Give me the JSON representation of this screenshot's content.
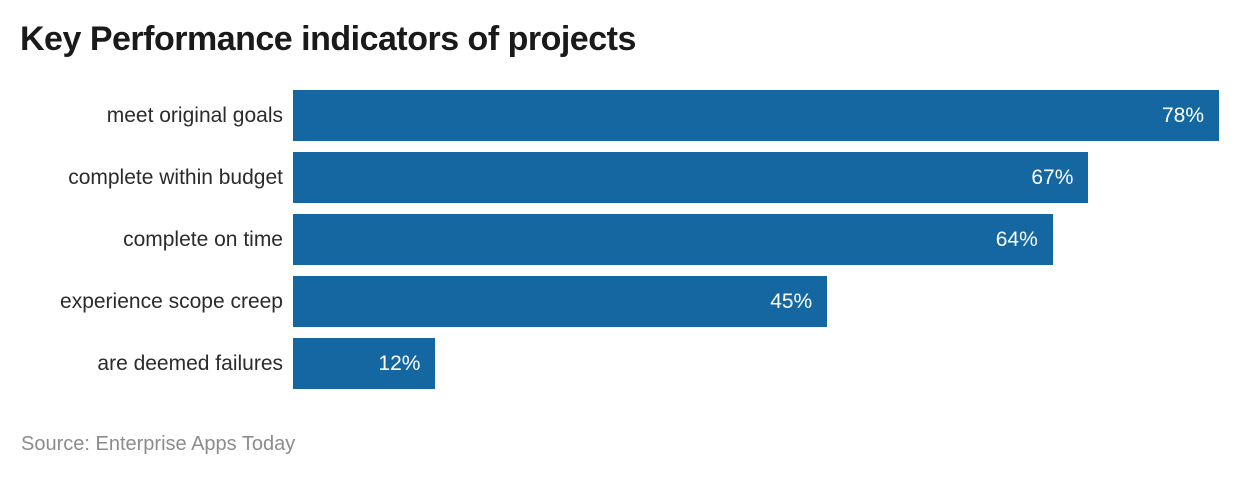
{
  "title": "Key Performance indicators of projects",
  "source": "Source: Enterprise Apps Today",
  "colors": {
    "bar": "#1467a0",
    "value_text": "#ffffff",
    "title_text": "#1a1a1a",
    "label_text": "#2b2b2b",
    "source_text": "#8c8c8c",
    "background": "#ffffff"
  },
  "chart_data": {
    "type": "bar",
    "orientation": "horizontal",
    "title": "Key Performance indicators of projects",
    "xlabel": "",
    "ylabel": "",
    "categories": [
      "meet original goals",
      "complete within budget",
      "complete on time",
      "experience scope creep",
      "are deemed failures"
    ],
    "values": [
      78,
      67,
      64,
      45,
      12
    ],
    "value_labels": [
      "78%",
      "67%",
      "64%",
      "45%",
      "12%"
    ],
    "unit": "%",
    "xlim": [
      0,
      78
    ],
    "grid": false,
    "legend": false,
    "value_label_position": "inside-end",
    "source": "Source: Enterprise Apps Today"
  }
}
